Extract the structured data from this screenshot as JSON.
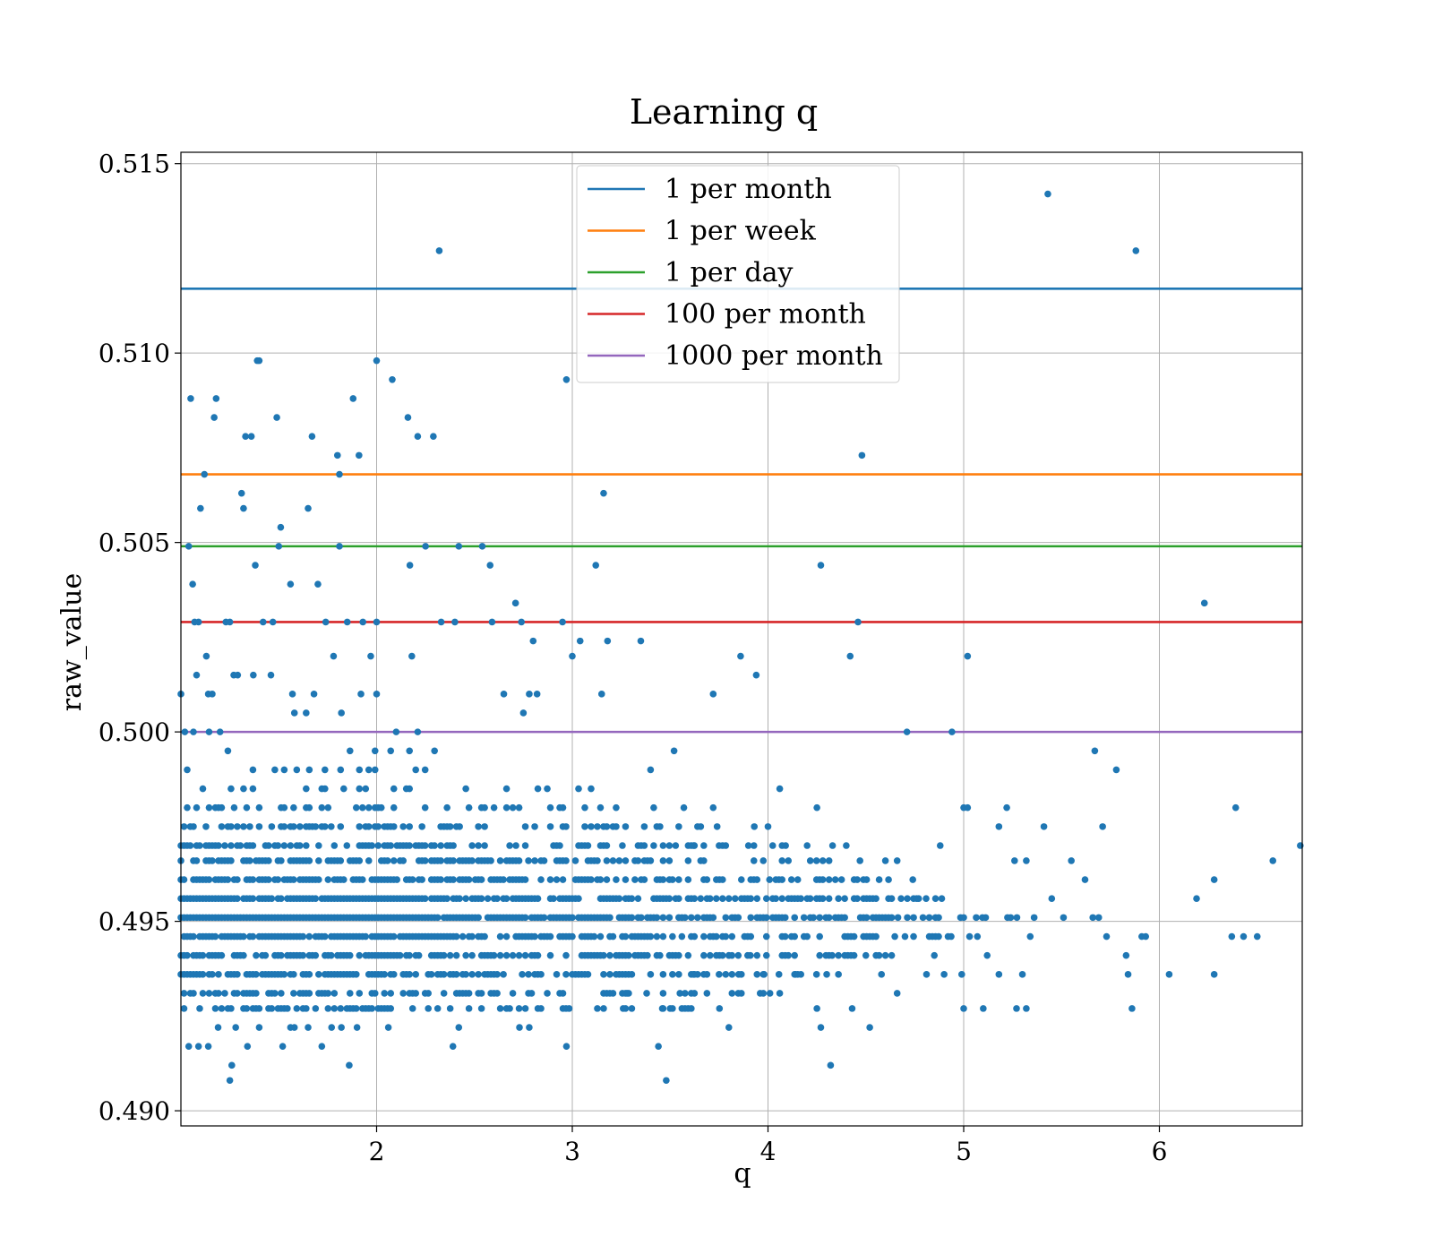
{
  "chart_data": {
    "type": "scatter",
    "title": "Learning q",
    "xlabel": "q",
    "ylabel": "raw_value",
    "xlim": [
      1.0,
      6.73
    ],
    "ylim": [
      0.4896,
      0.5153
    ],
    "x_ticks": [
      {
        "value": 2,
        "label": "2"
      },
      {
        "value": 3,
        "label": "3"
      },
      {
        "value": 4,
        "label": "4"
      },
      {
        "value": 5,
        "label": "5"
      },
      {
        "value": 6,
        "label": "6"
      }
    ],
    "y_ticks": [
      {
        "value": 0.49,
        "label": "0.490"
      },
      {
        "value": 0.495,
        "label": "0.495"
      },
      {
        "value": 0.5,
        "label": "0.500"
      },
      {
        "value": 0.505,
        "label": "0.505"
      },
      {
        "value": 0.51,
        "label": "0.510"
      },
      {
        "value": 0.515,
        "label": "0.515"
      }
    ],
    "grid": true,
    "legend_position": "upper-center",
    "hlines": [
      {
        "name": "1 per month",
        "y": 0.5117,
        "color": "#1f77b4"
      },
      {
        "name": "1 per week",
        "y": 0.5068,
        "color": "#ff7f0e"
      },
      {
        "name": "1 per day",
        "y": 0.5049,
        "color": "#2ca02c"
      },
      {
        "name": "100 per month",
        "y": 0.5029,
        "color": "#d62728"
      },
      {
        "name": "1000 per month",
        "y": 0.5,
        "color": "#9467bd"
      }
    ],
    "scatter_color": "#1f77b4",
    "series": [
      {
        "points": [
          [
            1.0,
            0.501
          ],
          [
            1.02,
            0.5
          ],
          [
            1.04,
            0.5049
          ],
          [
            1.05,
            0.5088
          ],
          [
            1.06,
            0.5039
          ],
          [
            1.07,
            0.5029
          ],
          [
            1.08,
            0.5015
          ],
          [
            1.09,
            0.5029
          ],
          [
            1.1,
            0.5059
          ],
          [
            1.12,
            0.5068
          ],
          [
            1.13,
            0.502
          ],
          [
            1.14,
            0.501
          ],
          [
            1.16,
            0.501
          ],
          [
            1.17,
            0.5083
          ],
          [
            1.18,
            0.5088
          ],
          [
            1.2,
            0.5
          ],
          [
            1.23,
            0.5029
          ],
          [
            1.25,
            0.5029
          ],
          [
            1.27,
            0.5015
          ],
          [
            1.29,
            0.5015
          ],
          [
            1.31,
            0.5063
          ],
          [
            1.32,
            0.5059
          ],
          [
            1.33,
            0.5078
          ],
          [
            1.36,
            0.5078
          ],
          [
            1.37,
            0.5015
          ],
          [
            1.38,
            0.5044
          ],
          [
            1.39,
            0.5098
          ],
          [
            1.4,
            0.5098
          ],
          [
            1.42,
            0.5029
          ],
          [
            1.46,
            0.5015
          ],
          [
            1.47,
            0.5029
          ],
          [
            1.49,
            0.5083
          ],
          [
            1.5,
            0.5049
          ],
          [
            1.51,
            0.5054
          ],
          [
            1.56,
            0.5039
          ],
          [
            1.57,
            0.501
          ],
          [
            1.58,
            0.5005
          ],
          [
            1.64,
            0.5005
          ],
          [
            1.65,
            0.5059
          ],
          [
            1.67,
            0.5078
          ],
          [
            1.68,
            0.501
          ],
          [
            1.7,
            0.5039
          ],
          [
            1.74,
            0.5029
          ],
          [
            1.78,
            0.502
          ],
          [
            1.8,
            0.5073
          ],
          [
            1.81,
            0.5068
          ],
          [
            1.81,
            0.5049
          ],
          [
            1.82,
            0.5005
          ],
          [
            1.85,
            0.5029
          ],
          [
            1.88,
            0.5088
          ],
          [
            1.91,
            0.5073
          ],
          [
            1.92,
            0.501
          ],
          [
            1.93,
            0.5029
          ],
          [
            1.97,
            0.502
          ],
          [
            2.0,
            0.5098
          ],
          [
            2.0,
            0.5029
          ],
          [
            2.0,
            0.501
          ],
          [
            2.08,
            0.5093
          ],
          [
            2.1,
            0.5
          ],
          [
            2.16,
            0.5083
          ],
          [
            2.17,
            0.5044
          ],
          [
            2.18,
            0.502
          ],
          [
            2.21,
            0.5078
          ],
          [
            2.21,
            0.5
          ],
          [
            2.25,
            0.5049
          ],
          [
            2.29,
            0.5078
          ],
          [
            2.32,
            0.5127
          ],
          [
            2.33,
            0.5029
          ],
          [
            2.4,
            0.5029
          ],
          [
            2.42,
            0.5049
          ],
          [
            2.54,
            0.5049
          ],
          [
            2.58,
            0.5044
          ],
          [
            2.59,
            0.5029
          ],
          [
            2.65,
            0.501
          ],
          [
            2.71,
            0.5034
          ],
          [
            2.74,
            0.5029
          ],
          [
            2.75,
            0.5005
          ],
          [
            2.78,
            0.501
          ],
          [
            2.8,
            0.5024
          ],
          [
            2.82,
            0.501
          ],
          [
            2.97,
            0.5093
          ],
          [
            2.95,
            0.5029
          ],
          [
            3.0,
            0.502
          ],
          [
            3.04,
            0.5024
          ],
          [
            3.12,
            0.5044
          ],
          [
            3.15,
            0.501
          ],
          [
            3.16,
            0.5063
          ],
          [
            3.18,
            0.5024
          ],
          [
            3.35,
            0.5024
          ],
          [
            3.72,
            0.501
          ],
          [
            3.94,
            0.5015
          ],
          [
            3.86,
            0.502
          ],
          [
            4.27,
            0.5044
          ],
          [
            4.42,
            0.502
          ],
          [
            4.46,
            0.5029
          ],
          [
            4.48,
            0.5073
          ],
          [
            4.71,
            0.5
          ],
          [
            4.94,
            0.5
          ],
          [
            5.02,
            0.502
          ],
          [
            5.43,
            0.5142
          ],
          [
            5.88,
            0.5127
          ],
          [
            6.23,
            0.5034
          ],
          [
            1.04,
            0.4917
          ],
          [
            1.09,
            0.4917
          ],
          [
            1.14,
            0.4917
          ],
          [
            1.19,
            0.4922
          ],
          [
            1.25,
            0.4908
          ],
          [
            1.26,
            0.4912
          ],
          [
            1.28,
            0.4922
          ],
          [
            1.34,
            0.4917
          ],
          [
            1.4,
            0.4922
          ],
          [
            1.52,
            0.4917
          ],
          [
            1.56,
            0.4922
          ],
          [
            1.58,
            0.4922
          ],
          [
            1.65,
            0.4922
          ],
          [
            1.72,
            0.4917
          ],
          [
            1.77,
            0.4922
          ],
          [
            1.82,
            0.4922
          ],
          [
            1.86,
            0.4912
          ],
          [
            1.9,
            0.4922
          ],
          [
            2.06,
            0.4922
          ],
          [
            2.39,
            0.4917
          ],
          [
            2.42,
            0.4922
          ],
          [
            2.73,
            0.4922
          ],
          [
            2.78,
            0.4922
          ],
          [
            2.97,
            0.4917
          ],
          [
            3.44,
            0.4917
          ],
          [
            3.48,
            0.4908
          ],
          [
            3.8,
            0.4922
          ],
          [
            4.27,
            0.4922
          ],
          [
            4.32,
            0.4912
          ],
          [
            4.52,
            0.4922
          ],
          [
            3.52,
            0.4995
          ],
          [
            3.72,
            0.498
          ],
          [
            3.4,
            0.499
          ],
          [
            3.57,
            0.498
          ],
          [
            3.74,
            0.4975
          ],
          [
            3.62,
            0.497
          ],
          [
            3.75,
            0.497
          ],
          [
            3.9,
            0.497
          ],
          [
            3.93,
            0.4975
          ],
          [
            4.0,
            0.4975
          ],
          [
            4.06,
            0.4985
          ],
          [
            4.09,
            0.497
          ],
          [
            4.2,
            0.497
          ],
          [
            4.25,
            0.498
          ],
          [
            4.33,
            0.497
          ],
          [
            4.4,
            0.497
          ],
          [
            4.47,
            0.4966
          ],
          [
            4.6,
            0.4966
          ],
          [
            4.66,
            0.4966
          ],
          [
            4.74,
            0.4961
          ],
          [
            4.88,
            0.497
          ],
          [
            5.0,
            0.498
          ],
          [
            5.02,
            0.498
          ],
          [
            5.18,
            0.4975
          ],
          [
            5.22,
            0.498
          ],
          [
            5.26,
            0.4966
          ],
          [
            5.32,
            0.4966
          ],
          [
            5.41,
            0.4975
          ],
          [
            5.55,
            0.4966
          ],
          [
            5.62,
            0.4961
          ],
          [
            5.67,
            0.4995
          ],
          [
            5.71,
            0.4975
          ],
          [
            5.78,
            0.499
          ],
          [
            6.19,
            0.4956
          ],
          [
            6.28,
            0.4961
          ],
          [
            6.39,
            0.498
          ],
          [
            6.58,
            0.4966
          ],
          [
            6.72,
            0.497
          ],
          [
            6.5,
            0.4946
          ],
          [
            6.43,
            0.4946
          ],
          [
            6.37,
            0.4946
          ],
          [
            6.05,
            0.4936
          ],
          [
            6.28,
            0.4936
          ],
          [
            5.93,
            0.4946
          ],
          [
            5.91,
            0.4946
          ],
          [
            5.86,
            0.4927
          ],
          [
            5.83,
            0.4941
          ],
          [
            5.84,
            0.4936
          ],
          [
            5.73,
            0.4946
          ],
          [
            5.69,
            0.4951
          ],
          [
            5.66,
            0.4951
          ],
          [
            5.51,
            0.4951
          ],
          [
            5.45,
            0.4956
          ],
          [
            5.36,
            0.4951
          ],
          [
            5.34,
            0.4946
          ],
          [
            5.32,
            0.4927
          ],
          [
            5.3,
            0.4936
          ],
          [
            5.27,
            0.4927
          ],
          [
            5.18,
            0.4936
          ],
          [
            5.12,
            0.4941
          ],
          [
            5.1,
            0.4927
          ],
          [
            5.07,
            0.4946
          ],
          [
            5.03,
            0.4946
          ],
          [
            5.0,
            0.4927
          ],
          [
            4.99,
            0.4936
          ],
          [
            4.92,
            0.4946
          ],
          [
            4.9,
            0.4936
          ],
          [
            4.85,
            0.4941
          ],
          [
            4.81,
            0.4936
          ],
          [
            4.77,
            0.4956
          ],
          [
            4.7,
            0.4946
          ],
          [
            4.66,
            0.4931
          ],
          [
            4.58,
            0.4936
          ],
          [
            4.52,
            0.4946
          ],
          [
            4.5,
            0.4941
          ],
          [
            4.43,
            0.4927
          ],
          [
            4.36,
            0.4936
          ],
          [
            4.3,
            0.4936
          ],
          [
            4.25,
            0.4927
          ],
          [
            4.14,
            0.4936
          ],
          [
            4.06,
            0.4931
          ],
          [
            4.01,
            0.4931
          ],
          [
            3.98,
            0.4936
          ],
          [
            3.91,
            0.4941
          ],
          [
            3.85,
            0.4936
          ],
          [
            3.8,
            0.4941
          ],
          [
            3.75,
            0.4936
          ],
          [
            3.62,
            0.4936
          ],
          [
            3.55,
            0.4931
          ],
          [
            3.5,
            0.4927
          ],
          [
            3.46,
            0.4927
          ],
          [
            3.38,
            0.4931
          ],
          [
            3.28,
            0.4931
          ],
          [
            3.26,
            0.4927
          ]
        ]
      }
    ],
    "dense_band": {
      "note_rows": [
        0.4927,
        0.4931,
        0.4936,
        0.4941,
        0.4946,
        0.4951,
        0.4956,
        0.4961,
        0.4966,
        0.497,
        0.4975,
        0.498,
        0.4985,
        0.499,
        0.4995,
        0.5
      ]
    }
  }
}
